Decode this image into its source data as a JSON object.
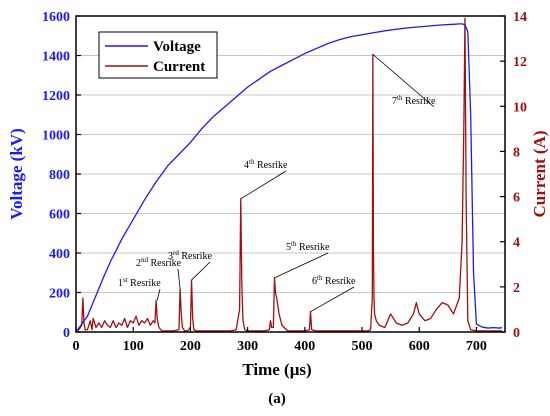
{
  "chart_data": {
    "type": "line",
    "xlabel": "Time (μs)",
    "ylabel_left": "Voltage (kV)",
    "ylabel_right": "Current (A)",
    "caption": "(a)",
    "xlim": [
      0,
      750
    ],
    "ylim_left": [
      0,
      1600
    ],
    "ylim_right": [
      0,
      14
    ],
    "x_ticks": [
      0,
      100,
      200,
      300,
      400,
      500,
      600,
      700
    ],
    "y_left_ticks": [
      0,
      200,
      400,
      600,
      800,
      1000,
      1200,
      1400,
      1600
    ],
    "y_right_ticks": [
      0,
      2,
      4,
      6,
      8,
      10,
      12,
      14
    ],
    "grid": true,
    "legend_position": "top-left",
    "colors": {
      "voltage": "#1a1aff",
      "current": "#a01010"
    },
    "series": [
      {
        "name": "Voltage",
        "axis": "left",
        "x": [
          0,
          10,
          20,
          30,
          40,
          50,
          60,
          80,
          100,
          120,
          140,
          160,
          180,
          200,
          220,
          240,
          260,
          280,
          300,
          320,
          340,
          360,
          380,
          400,
          420,
          440,
          460,
          480,
          500,
          520,
          540,
          560,
          580,
          600,
          620,
          640,
          660,
          670,
          675,
          680,
          685,
          690,
          695,
          700,
          710,
          720,
          730,
          740,
          745
        ],
        "y": [
          0,
          40,
          80,
          150,
          220,
          290,
          355,
          470,
          570,
          670,
          760,
          840,
          900,
          960,
          1030,
          1090,
          1140,
          1190,
          1240,
          1280,
          1320,
          1350,
          1380,
          1410,
          1435,
          1460,
          1480,
          1495,
          1505,
          1515,
          1525,
          1533,
          1540,
          1545,
          1550,
          1555,
          1558,
          1560,
          1560,
          1555,
          1520,
          1100,
          300,
          40,
          25,
          20,
          22,
          20,
          22
        ]
      },
      {
        "name": "Current",
        "axis": "right",
        "x": [
          0,
          5,
          10,
          12,
          14,
          16,
          20,
          25,
          28,
          30,
          35,
          40,
          45,
          50,
          55,
          60,
          65,
          70,
          75,
          80,
          85,
          90,
          95,
          100,
          105,
          110,
          115,
          120,
          125,
          130,
          135,
          138,
          140,
          142,
          145,
          150,
          160,
          170,
          180,
          182,
          184,
          186,
          190,
          195,
          200,
          202,
          204,
          206,
          210,
          220,
          230,
          240,
          250,
          260,
          270,
          280,
          286,
          288,
          290,
          292,
          295,
          300,
          320,
          330,
          338,
          340,
          342,
          345,
          347,
          349,
          351,
          355,
          360,
          370,
          380,
          390,
          400,
          408,
          410,
          412,
          420,
          450,
          480,
          510,
          515,
          518,
          519,
          520,
          521,
          522,
          525,
          530,
          540,
          550,
          560,
          570,
          580,
          590,
          595,
          600,
          610,
          620,
          630,
          640,
          650,
          660,
          670,
          675,
          678,
          680,
          682,
          685,
          690,
          700,
          720,
          745
        ],
        "y": [
          0.05,
          0.1,
          0.3,
          1.5,
          0.4,
          0.1,
          0.1,
          0.5,
          0.1,
          0.6,
          0.2,
          0.4,
          0.2,
          0.5,
          0.3,
          0.2,
          0.5,
          0.2,
          0.4,
          0.3,
          0.6,
          0.2,
          0.5,
          0.4,
          0.7,
          0.3,
          0.5,
          0.4,
          0.6,
          0.3,
          0.5,
          0.4,
          1.4,
          0.6,
          0.2,
          0.05,
          0.05,
          0.05,
          0.1,
          1.9,
          0.8,
          0.2,
          0.05,
          0.05,
          0.2,
          2.3,
          0.6,
          0.1,
          0.05,
          0.05,
          0.05,
          0.05,
          0.05,
          0.05,
          0.05,
          0.1,
          1.0,
          5.9,
          2.0,
          0.5,
          0.1,
          0.05,
          0.05,
          0.05,
          0.1,
          0.5,
          0.2,
          0.2,
          2.4,
          1.7,
          1.5,
          0.8,
          0.3,
          0.05,
          0.05,
          0.05,
          0.05,
          0.1,
          0.9,
          0.1,
          0.05,
          0.05,
          0.05,
          0.05,
          0.1,
          1.5,
          12.3,
          3.6,
          1.5,
          0.8,
          0.5,
          0.3,
          0.2,
          0.8,
          0.4,
          0.3,
          0.4,
          0.8,
          1.3,
          0.8,
          0.5,
          0.6,
          1.0,
          1.3,
          1.2,
          0.8,
          1.5,
          4.0,
          9.0,
          13.9,
          6.0,
          0.5,
          0.1,
          0.05,
          0.05,
          0.05
        ]
      }
    ],
    "annotations": [
      {
        "label": "1",
        "sup": "st",
        "suffix": " Resrike",
        "target_x": 142,
        "target_y": 1.4
      },
      {
        "label": "2",
        "sup": "nd",
        "suffix": " Resrike",
        "target_x": 182,
        "target_y": 1.9
      },
      {
        "label": "3",
        "sup": "rd",
        "suffix": " Resrike",
        "target_x": 202,
        "target_y": 2.3
      },
      {
        "label": "4",
        "sup": "th",
        "suffix": " Resrike",
        "target_x": 288,
        "target_y": 5.9
      },
      {
        "label": "5",
        "sup": "th",
        "suffix": " Resrike",
        "target_x": 347,
        "target_y": 2.4
      },
      {
        "label": "6",
        "sup": "th",
        "suffix": " Resrike",
        "target_x": 410,
        "target_y": 0.9
      },
      {
        "label": "7",
        "sup": "th",
        "suffix": " Resrike",
        "target_x": 519,
        "target_y": 12.3
      }
    ]
  }
}
